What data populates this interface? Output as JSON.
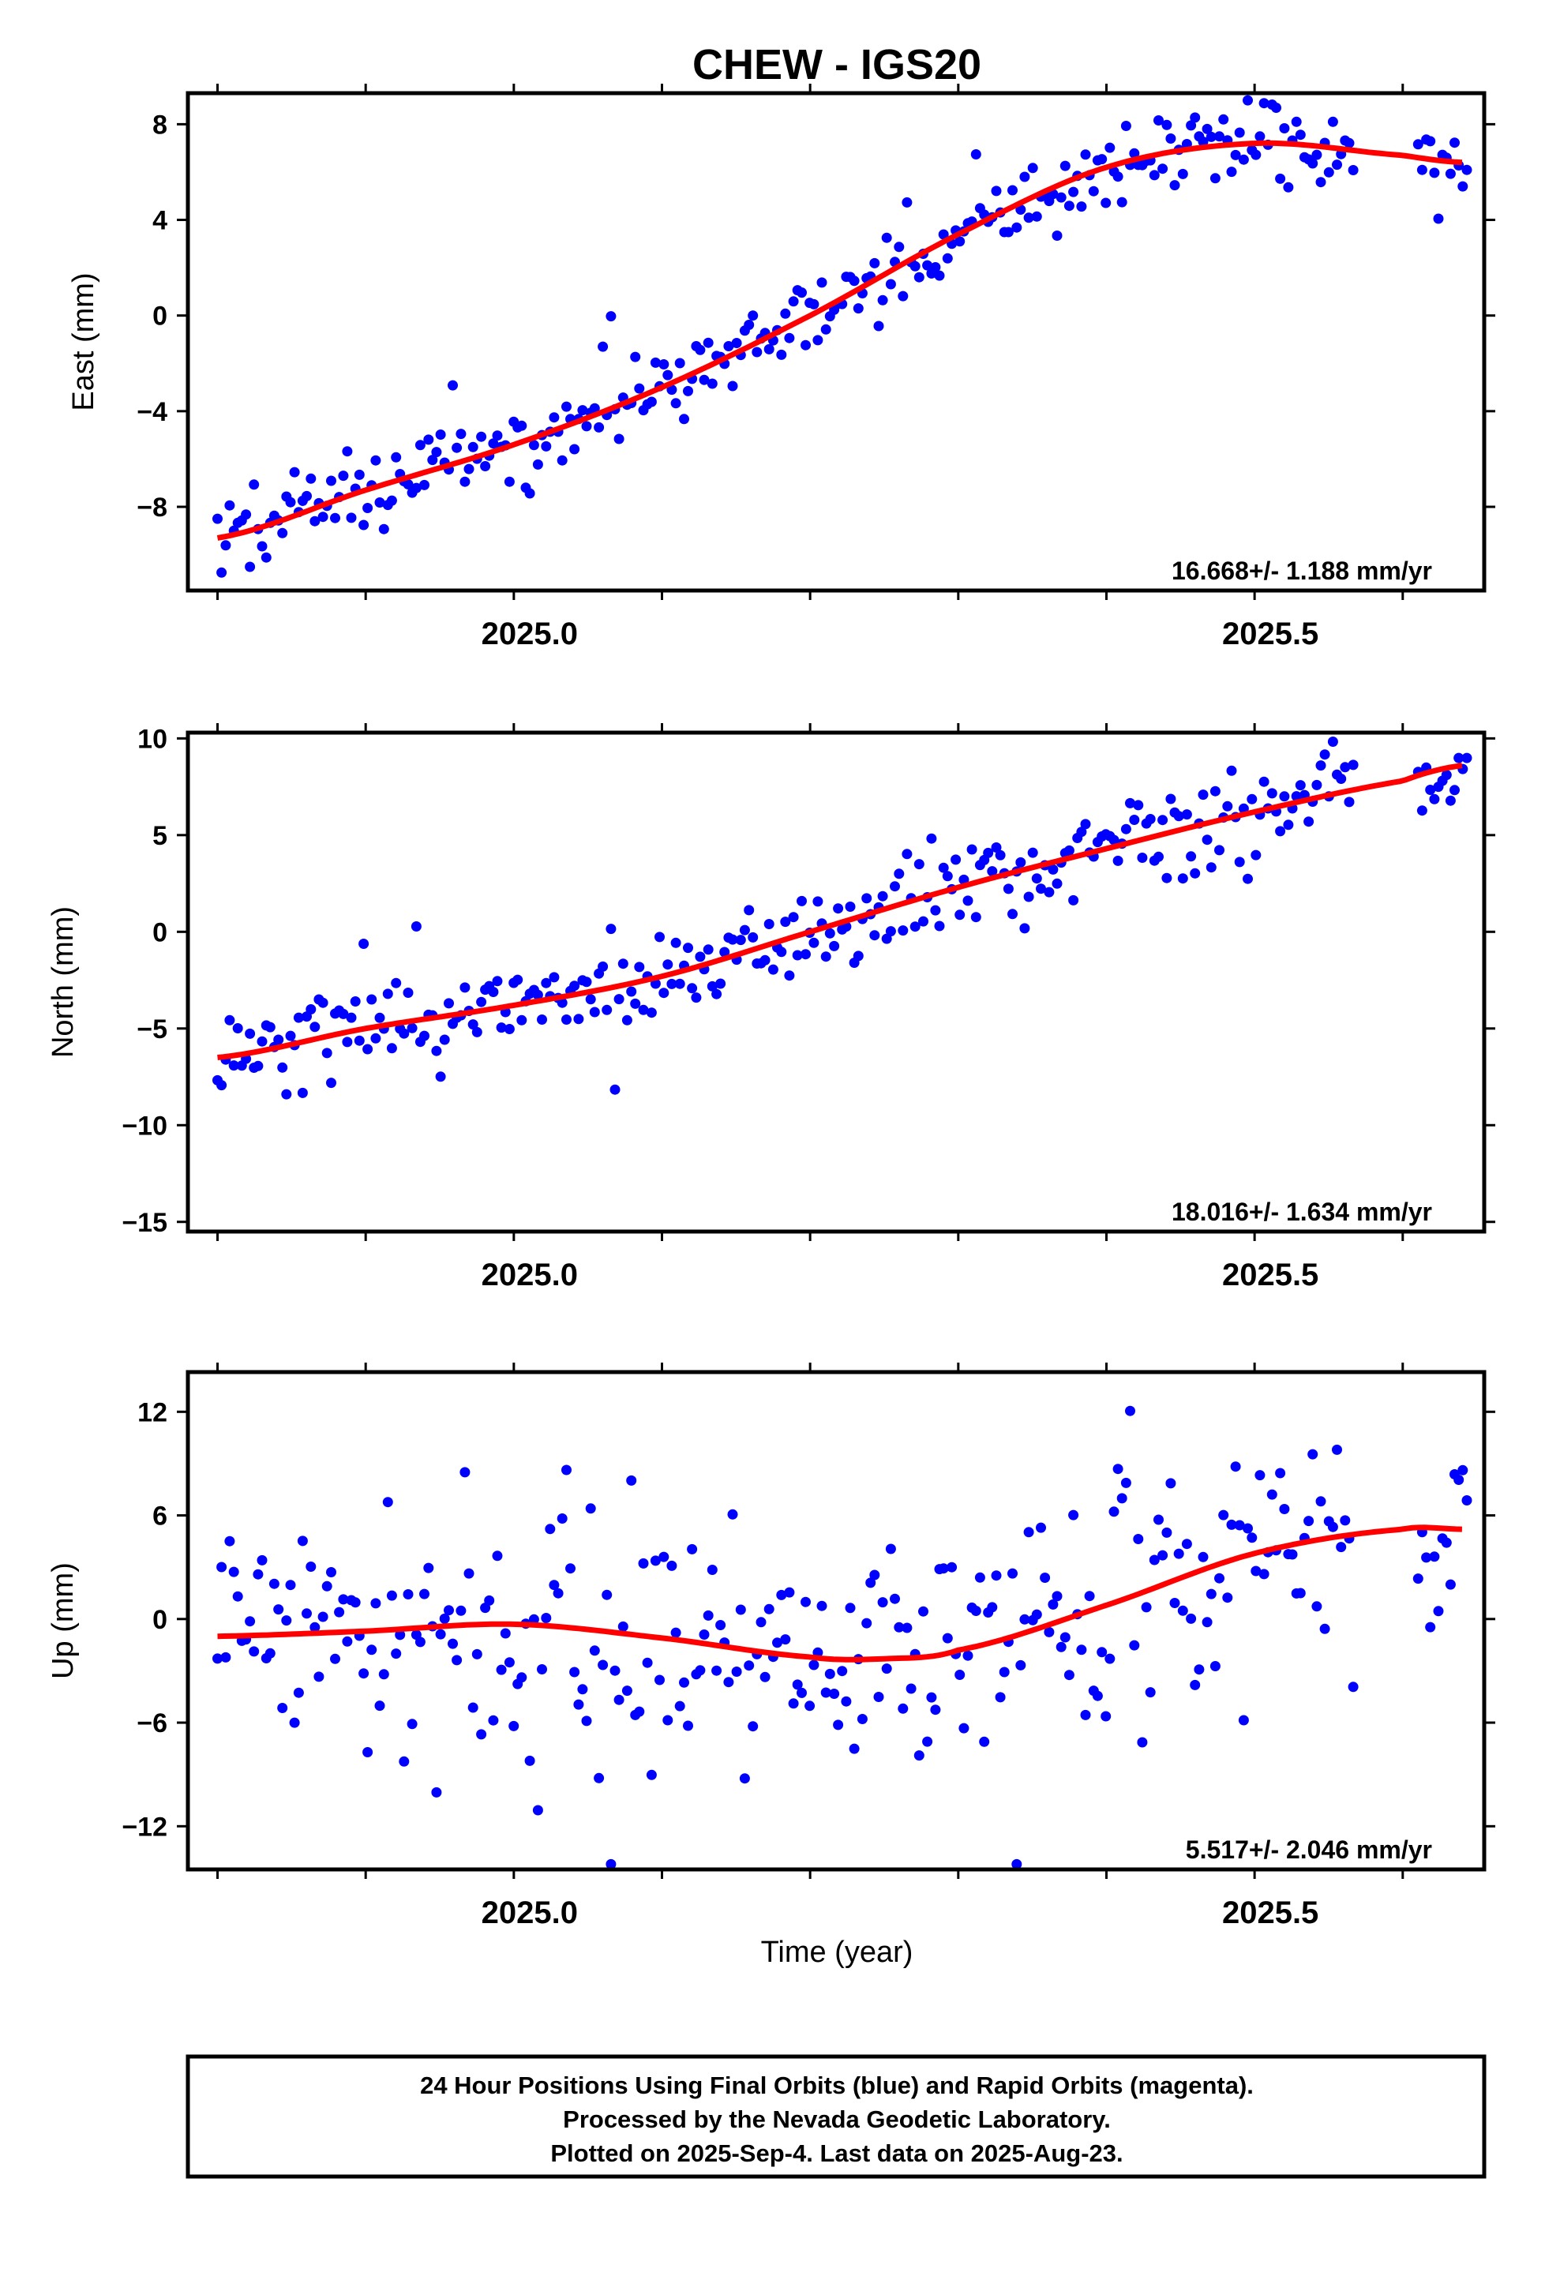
{
  "title": "CHEW - IGS20",
  "xlabel": "Time (year)",
  "colors": {
    "points": "#0000ff",
    "fit": "#ff0000",
    "frame": "#000000"
  },
  "footer": {
    "lines": [
      "24 Hour Positions Using Final Orbits (blue) and Rapid Orbits (magenta).",
      "Processed by the Nevada Geodetic Laboratory.",
      "Plotted on 2025-Sep-4. Last data on 2025-Aug-23."
    ]
  },
  "chart_data": [
    {
      "type": "scatter",
      "component": "East",
      "ylabel": "East (mm)",
      "rate_label": "16.668+/- 1.188 mm/yr",
      "xlim": [
        2024.78,
        2025.655
      ],
      "ylim": [
        -11.5,
        9.3
      ],
      "yticks": [
        -8,
        -4,
        0,
        4,
        8
      ],
      "xticks": [
        2025.0,
        2025.5
      ],
      "xticklabels": [
        "2025.0",
        "2025.5"
      ],
      "fit": {
        "x": [
          2024.8,
          2024.9,
          2025.0,
          2025.1,
          2025.2,
          2025.3,
          2025.4,
          2025.5,
          2025.6,
          2025.64
        ],
        "y": [
          -9.3,
          -7.3,
          -5.4,
          -3.0,
          0.0,
          3.4,
          6.2,
          7.2,
          6.7,
          6.4
        ]
      },
      "points": {
        "x": [],
        "y": []
      }
    },
    {
      "type": "scatter",
      "component": "North",
      "ylabel": "North (mm)",
      "rate_label": "18.016+/- 1.634 mm/yr",
      "xlim": [
        2024.78,
        2025.655
      ],
      "ylim": [
        -15.5,
        10.3
      ],
      "yticks": [
        -15,
        -10,
        -5,
        0,
        5,
        10
      ],
      "xticks": [
        2025.0,
        2025.5
      ],
      "xticklabels": [
        "2025.0",
        "2025.5"
      ],
      "fit": {
        "x": [
          2024.8,
          2024.9,
          2025.0,
          2025.1,
          2025.2,
          2025.3,
          2025.4,
          2025.5,
          2025.6,
          2025.64
        ],
        "y": [
          -6.5,
          -5.0,
          -3.8,
          -2.3,
          0.0,
          2.3,
          4.3,
          6.2,
          7.8,
          8.6
        ]
      },
      "points": {
        "x": [],
        "y": []
      }
    },
    {
      "type": "scatter",
      "component": "Up",
      "ylabel": "Up (mm)",
      "rate_label": "5.517+/- 2.046 mm/yr",
      "xlim": [
        2024.78,
        2025.655
      ],
      "ylim": [
        -14.5,
        14.3
      ],
      "yticks": [
        -12,
        -6,
        0,
        6,
        12
      ],
      "xticks": [
        2025.0,
        2025.5
      ],
      "xticklabels": [
        "2025.0",
        "2025.5"
      ],
      "fit": {
        "x": [
          2024.8,
          2024.9,
          2025.0,
          2025.1,
          2025.2,
          2025.25,
          2025.3,
          2025.4,
          2025.5,
          2025.6,
          2025.64
        ],
        "y": [
          -1.0,
          -0.7,
          -0.3,
          -1.1,
          -2.2,
          -2.3,
          -1.8,
          0.8,
          3.8,
          5.2,
          5.2
        ]
      },
      "points": {
        "x": [],
        "y": []
      }
    }
  ]
}
